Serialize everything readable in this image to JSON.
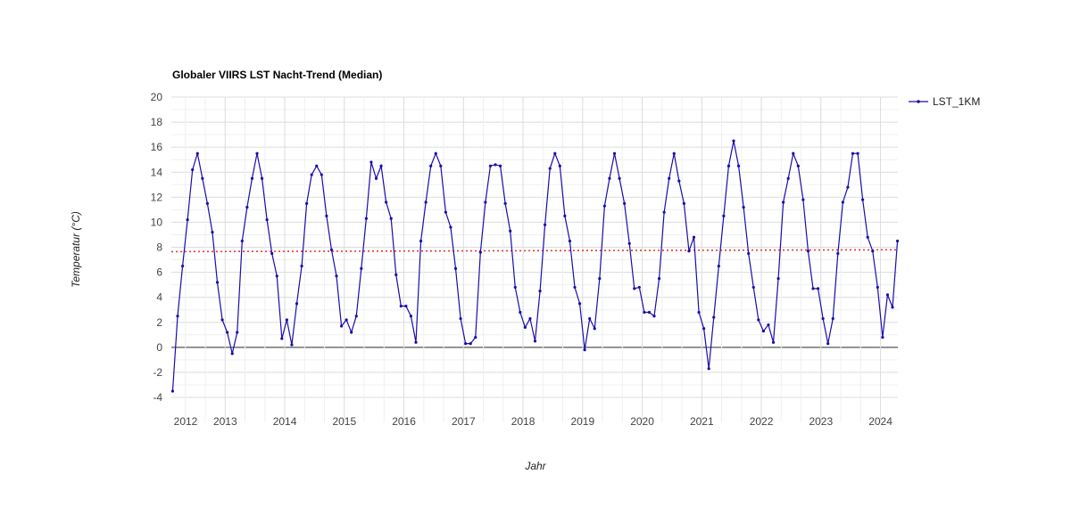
{
  "chart_data": {
    "type": "line",
    "title": "Globaler VIIRS LST Nacht-Trend (Median)",
    "xlabel": "Jahr",
    "ylabel": "Temperatur (°C)",
    "ylim": [
      -4,
      20
    ],
    "yticks": [
      "-4",
      "-2",
      "0",
      "2",
      "4",
      "6",
      "8",
      "10",
      "12",
      "14",
      "16",
      "18",
      "20"
    ],
    "xticks": [
      "2012",
      "2013",
      "2014",
      "2015",
      "2016",
      "2017",
      "2018",
      "2019",
      "2020",
      "2021",
      "2022",
      "2023",
      "2024"
    ],
    "grid": true,
    "legend_position": "right",
    "start": "2012-02",
    "frequency": "monthly",
    "series": [
      {
        "name": "LST_1KM",
        "color": "#1a0dab",
        "values": [
          -3.5,
          2.5,
          6.5,
          10.2,
          14.2,
          15.5,
          13.5,
          11.5,
          9.2,
          5.2,
          2.2,
          1.2,
          -0.5,
          1.2,
          8.5,
          11.2,
          13.5,
          15.5,
          13.5,
          10.2,
          7.5,
          5.7,
          0.7,
          2.2,
          0.2,
          3.5,
          6.5,
          11.5,
          13.8,
          14.5,
          13.8,
          10.5,
          7.8,
          5.7,
          1.7,
          2.2,
          1.2,
          2.5,
          6.3,
          10.3,
          14.8,
          13.5,
          14.5,
          11.6,
          10.3,
          5.8,
          3.3,
          3.3,
          2.5,
          0.4,
          8.5,
          11.6,
          14.5,
          15.5,
          14.5,
          10.8,
          9.6,
          6.3,
          2.3,
          0.3,
          0.3,
          0.8,
          7.6,
          11.6,
          14.5,
          14.6,
          14.5,
          11.5,
          9.3,
          4.8,
          2.8,
          1.6,
          2.3,
          0.5,
          4.5,
          9.8,
          14.3,
          15.5,
          14.5,
          10.5,
          8.5,
          4.8,
          3.5,
          -0.2,
          2.3,
          1.5,
          5.5,
          11.3,
          13.5,
          15.5,
          13.5,
          11.5,
          8.3,
          4.7,
          4.8,
          2.8,
          2.8,
          2.5,
          5.5,
          10.8,
          13.5,
          15.5,
          13.3,
          11.5,
          7.7,
          8.8,
          2.8,
          1.5,
          -1.7,
          2.4,
          6.5,
          10.5,
          14.5,
          16.5,
          14.5,
          11.2,
          7.5,
          4.8,
          2.2,
          1.3,
          1.8,
          0.4,
          5.5,
          11.6,
          13.5,
          15.5,
          14.5,
          11.8,
          7.7,
          4.7,
          4.7,
          2.3,
          0.3,
          2.3,
          7.5,
          11.6,
          12.8,
          15.5,
          15.5,
          11.8,
          8.8,
          7.7,
          4.8,
          0.8,
          4.2,
          3.2,
          8.5
        ]
      }
    ],
    "trendline": {
      "color": "#e53935",
      "style": "dotted",
      "start_value": 7.65,
      "end_value": 7.8
    }
  }
}
